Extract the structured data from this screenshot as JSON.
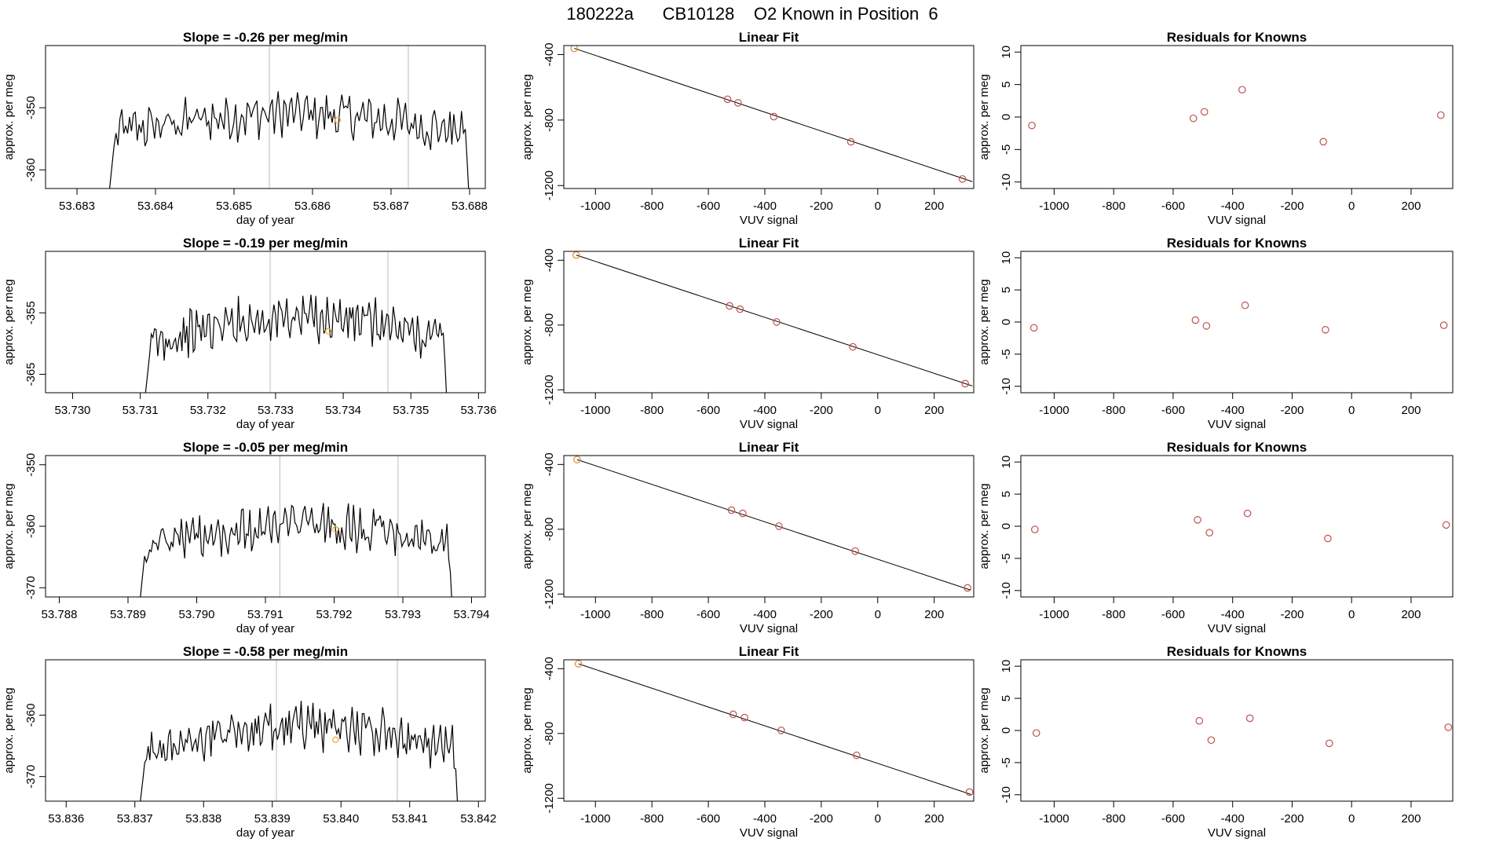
{
  "page_title": "180222a      CB10128    O2 Known in Position  6",
  "chart_data": [
    {
      "type": "line",
      "title": "Slope =  -0.26  per meg/min",
      "xlabel": "day of year",
      "ylabel": "approx. per meg",
      "xlim": [
        53.6826,
        53.6882
      ],
      "ylim": [
        -363,
        -340
      ],
      "xticks": [
        "53.683",
        "53.684",
        "53.685",
        "53.686",
        "53.687",
        "53.688"
      ],
      "yticks": [
        "-350",
        "-360"
      ],
      "vlines": [
        53.68545,
        53.68722
      ],
      "marker": {
        "x": 53.68632,
        "y": -352
      },
      "series_start": 53.68335,
      "series_end": 53.68802,
      "rise_start": -371,
      "plateau_start": -354,
      "plateau_mid": -351,
      "plateau_end": -354,
      "fall_end": -371
    },
    {
      "type": "line",
      "title": "Slope =  -0.19  per meg/min",
      "xlabel": "day of year",
      "ylabel": "approx. per meg",
      "xlim": [
        53.7296,
        53.7361
      ],
      "ylim": [
        -368,
        -345
      ],
      "xticks": [
        "53.730",
        "53.731",
        "53.732",
        "53.733",
        "53.734",
        "53.735",
        "53.736"
      ],
      "yticks": [
        "-355",
        "-365"
      ],
      "vlines": [
        53.73292,
        53.73466
      ],
      "marker": {
        "x": 53.73378,
        "y": -358
      },
      "series_start": 53.73102,
      "series_end": 53.73555,
      "rise_start": -374,
      "plateau_start": -360,
      "plateau_mid": -356,
      "plateau_end": -358,
      "fall_end": -374
    },
    {
      "type": "line",
      "title": "Slope =  -0.05  per meg/min",
      "xlabel": "day of year",
      "ylabel": "approx. per meg",
      "xlim": [
        53.7878,
        53.7942
      ],
      "ylim": [
        -371.5,
        -348.5
      ],
      "xticks": [
        "53.788",
        "53.789",
        "53.790",
        "53.791",
        "53.792",
        "53.793",
        "53.794"
      ],
      "yticks": [
        "-350",
        "-360",
        "-370"
      ],
      "vlines": [
        53.79121,
        53.79293
      ],
      "marker": {
        "x": 53.79202,
        "y": -360.5
      },
      "series_start": 53.78912,
      "series_end": 53.79374,
      "rise_start": -378,
      "plateau_start": -363,
      "plateau_mid": -360,
      "plateau_end": -363,
      "fall_end": -378
    },
    {
      "type": "line",
      "title": "Slope =  -0.58  per meg/min",
      "xlabel": "day of year",
      "ylabel": "approx. per meg",
      "xlim": [
        53.8357,
        53.8421
      ],
      "ylim": [
        -374,
        -351
      ],
      "xticks": [
        "53.836",
        "53.837",
        "53.838",
        "53.839",
        "53.840",
        "53.841",
        "53.842"
      ],
      "yticks": [
        "-360",
        "-370"
      ],
      "vlines": [
        53.83906,
        53.84082
      ],
      "marker": {
        "x": 53.83992,
        "y": -364
      },
      "series_start": 53.83702,
      "series_end": 53.84172,
      "rise_start": -380,
      "plateau_start": -366,
      "plateau_mid": -362,
      "plateau_end": -364,
      "fall_end": -380
    },
    {
      "type": "scatter",
      "title": "Linear Fit",
      "xlabel": "VUV signal",
      "ylabel": "approx. per meg",
      "xlim": [
        -1112,
        340
      ],
      "ylim": [
        -1218,
        -345
      ],
      "xticks": [
        -1000,
        -800,
        -600,
        -400,
        -200,
        0,
        200
      ],
      "yticks": [
        -400,
        -800,
        -1200
      ],
      "points": [
        [
          -1075,
          -362
        ],
        [
          -532,
          -673
        ],
        [
          -495,
          -695
        ],
        [
          -368,
          -779
        ],
        [
          -95,
          -933
        ],
        [
          300,
          -1160
        ]
      ],
      "fit_line": [
        [
          -1075,
          -362
        ],
        [
          335,
          -1176
        ]
      ]
    },
    {
      "type": "scatter",
      "title": "Linear Fit",
      "xlabel": "VUV signal",
      "ylabel": "approx. per meg",
      "xlim": [
        -1112,
        340
      ],
      "ylim": [
        -1218,
        -345
      ],
      "xticks": [
        -1000,
        -800,
        -600,
        -400,
        -200,
        0,
        200
      ],
      "yticks": [
        -400,
        -800,
        -1200
      ],
      "points": [
        [
          -1068,
          -368
        ],
        [
          -525,
          -682
        ],
        [
          -488,
          -702
        ],
        [
          -358,
          -781
        ],
        [
          -88,
          -935
        ],
        [
          310,
          -1162
        ]
      ],
      "fit_line": [
        [
          -1068,
          -368
        ],
        [
          335,
          -1176
        ]
      ]
    },
    {
      "type": "scatter",
      "title": "Linear Fit",
      "xlabel": "VUV signal",
      "ylabel": "approx. per meg",
      "xlim": [
        -1112,
        340
      ],
      "ylim": [
        -1218,
        -345
      ],
      "xticks": [
        -1000,
        -800,
        -600,
        -400,
        -200,
        0,
        200
      ],
      "yticks": [
        -400,
        -800,
        -1200
      ],
      "points": [
        [
          -1065,
          -370
        ],
        [
          -518,
          -682
        ],
        [
          -478,
          -702
        ],
        [
          -350,
          -781
        ],
        [
          -80,
          -935
        ],
        [
          318,
          -1162
        ]
      ],
      "fit_line": [
        [
          -1065,
          -370
        ],
        [
          330,
          -1176
        ]
      ]
    },
    {
      "type": "scatter",
      "title": "Linear Fit",
      "xlabel": "VUV signal",
      "ylabel": "approx. per meg",
      "xlim": [
        -1112,
        340
      ],
      "ylim": [
        -1218,
        -345
      ],
      "xticks": [
        -1000,
        -800,
        -600,
        -400,
        -200,
        0,
        200
      ],
      "yticks": [
        -400,
        -800,
        -1200
      ],
      "points": [
        [
          -1060,
          -370
        ],
        [
          -512,
          -682
        ],
        [
          -472,
          -702
        ],
        [
          -342,
          -781
        ],
        [
          -75,
          -935
        ],
        [
          325,
          -1162
        ]
      ],
      "fit_line": [
        [
          -1060,
          -370
        ],
        [
          330,
          -1176
        ]
      ]
    },
    {
      "type": "scatter",
      "title": "Residuals for Knowns",
      "xlabel": "VUV signal",
      "ylabel": "approx. per meg",
      "xlim": [
        -1112,
        340
      ],
      "ylim": [
        -11,
        11
      ],
      "xticks": [
        -1000,
        -800,
        -600,
        -400,
        -200,
        0,
        200
      ],
      "yticks": [
        10,
        5,
        0,
        -5,
        -10
      ],
      "points": [
        [
          -1075,
          -1.3
        ],
        [
          -532,
          -0.2
        ],
        [
          -495,
          0.8
        ],
        [
          -368,
          4.2
        ],
        [
          -95,
          -3.8
        ],
        [
          300,
          0.3
        ]
      ]
    },
    {
      "type": "scatter",
      "title": "Residuals for Knowns",
      "xlabel": "VUV signal",
      "ylabel": "approx. per meg",
      "xlim": [
        -1112,
        340
      ],
      "ylim": [
        -11,
        11
      ],
      "xticks": [
        -1000,
        -800,
        -600,
        -400,
        -200,
        0,
        200
      ],
      "yticks": [
        10,
        5,
        0,
        -5,
        -10
      ],
      "points": [
        [
          -1068,
          -0.9
        ],
        [
          -525,
          0.3
        ],
        [
          -488,
          -0.6
        ],
        [
          -358,
          2.6
        ],
        [
          -88,
          -1.2
        ],
        [
          310,
          -0.5
        ]
      ]
    },
    {
      "type": "scatter",
      "title": "Residuals for Knowns",
      "xlabel": "VUV signal",
      "ylabel": "approx. per meg",
      "xlim": [
        -1112,
        340
      ],
      "ylim": [
        -11,
        11
      ],
      "xticks": [
        -1000,
        -800,
        -600,
        -400,
        -200,
        0,
        200
      ],
      "yticks": [
        10,
        5,
        0,
        -5,
        -10
      ],
      "points": [
        [
          -1065,
          -0.5
        ],
        [
          -518,
          1.0
        ],
        [
          -478,
          -1.0
        ],
        [
          -350,
          2.0
        ],
        [
          -80,
          -1.9
        ],
        [
          318,
          0.2
        ]
      ]
    },
    {
      "type": "scatter",
      "title": "Residuals for Knowns",
      "xlabel": "VUV signal",
      "ylabel": "approx. per meg",
      "xlim": [
        -1112,
        340
      ],
      "ylim": [
        -11,
        11
      ],
      "xticks": [
        -1000,
        -800,
        -600,
        -400,
        -200,
        0,
        200
      ],
      "yticks": [
        10,
        5,
        0,
        -5,
        -10
      ],
      "points": [
        [
          -1060,
          -0.4
        ],
        [
          -512,
          1.5
        ],
        [
          -472,
          -1.5
        ],
        [
          -342,
          1.9
        ],
        [
          -75,
          -2.0
        ],
        [
          325,
          0.5
        ]
      ]
    }
  ]
}
